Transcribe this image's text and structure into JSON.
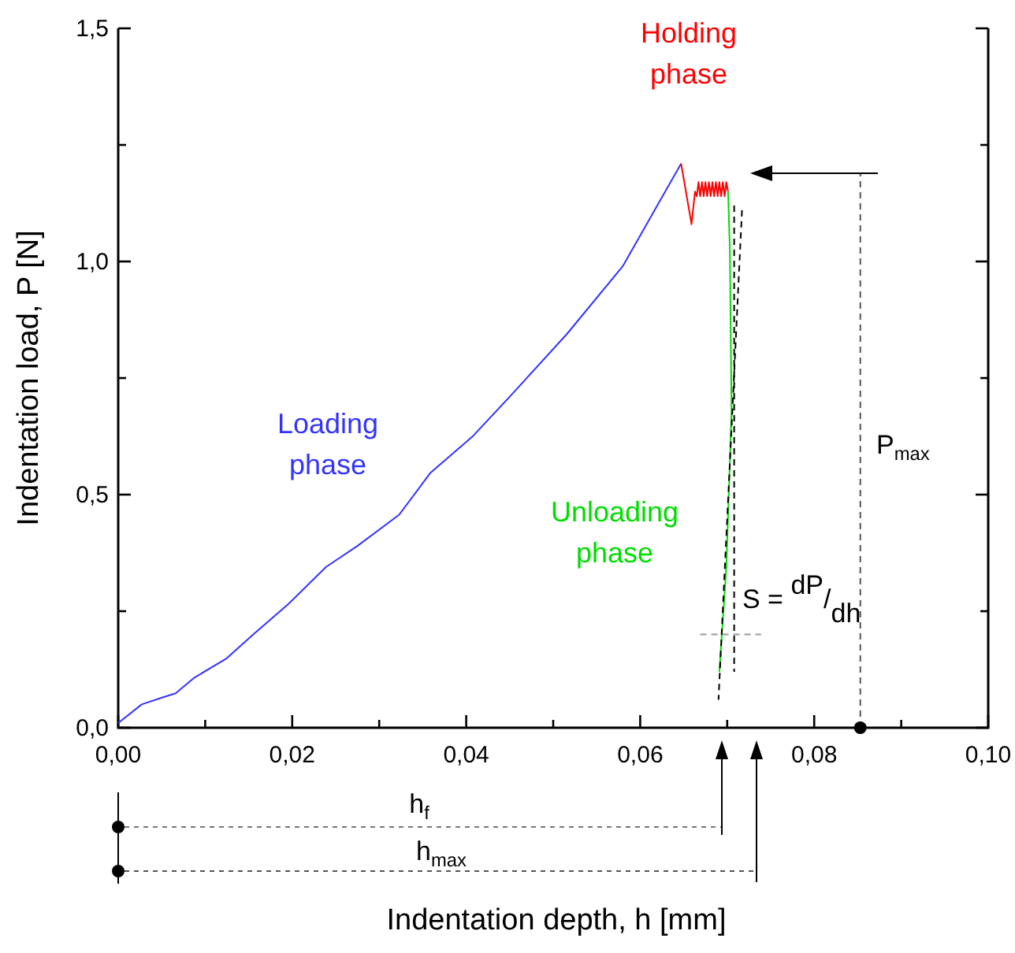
{
  "chart_data": {
    "type": "line",
    "xlabel": "Indentation depth, h [mm]",
    "ylabel": "Indentation load, P [N]",
    "xlim": [
      0,
      0.1
    ],
    "ylim": [
      0,
      1.5
    ],
    "xticks": [
      {
        "value": 0,
        "label": "0,00"
      },
      {
        "value": 0.01,
        "label": null
      },
      {
        "value": 0.02,
        "label": "0,02"
      },
      {
        "value": 0.03,
        "label": null
      },
      {
        "value": 0.04,
        "label": "0,04"
      },
      {
        "value": 0.05,
        "label": null
      },
      {
        "value": 0.06,
        "label": "0,06"
      },
      {
        "value": 0.07,
        "label": null
      },
      {
        "value": 0.08,
        "label": "0,08"
      },
      {
        "value": 0.09,
        "label": null
      },
      {
        "value": 0.1,
        "label": "0,10"
      }
    ],
    "yticks": [
      {
        "value": 0,
        "label": "0,0"
      },
      {
        "value": 0.25,
        "label": null
      },
      {
        "value": 0.5,
        "label": "0,5"
      },
      {
        "value": 0.75,
        "label": null
      },
      {
        "value": 1,
        "label": "1,0"
      },
      {
        "value": 1.25,
        "label": null
      },
      {
        "value": 1.5,
        "label": "1,5"
      }
    ],
    "grid": false,
    "series": [
      {
        "color": "#3333ff",
        "x": [
          0,
          0.0027,
          0.0051,
          0.0066,
          0.0088,
          0.0124,
          0.0154,
          0.0196,
          0.0239,
          0.0275,
          0.0323,
          0.0359,
          0.0408,
          0.0453,
          0.0516,
          0.058,
          0.0647
        ],
        "values": [
          0.01,
          0.05,
          0.065,
          0.074,
          0.108,
          0.148,
          0.198,
          0.266,
          0.345,
          0.39,
          0.457,
          0.547,
          0.626,
          0.716,
          0.845,
          0.99,
          1.21
        ]
      },
      {
        "color": "#ff0000",
        "x": [
          0.0647,
          0.0659,
          0.0663,
          0.0665,
          0.0667,
          0.0669,
          0.0671,
          0.0673,
          0.0675,
          0.0677,
          0.0679,
          0.0681,
          0.0683,
          0.0685,
          0.0687,
          0.0689,
          0.0691,
          0.0693,
          0.0695,
          0.0697,
          0.0699,
          0.0701
        ],
        "values": [
          1.21,
          1.08,
          1.15,
          1.14,
          1.17,
          1.14,
          1.17,
          1.14,
          1.17,
          1.14,
          1.17,
          1.14,
          1.17,
          1.14,
          1.17,
          1.14,
          1.17,
          1.14,
          1.17,
          1.14,
          1.17,
          1.15
        ]
      },
      {
        "color": "#00dd00",
        "x": [
          0.0701,
          0.0703,
          0.0705,
          0.0699,
          0.0691
        ],
        "values": [
          1.15,
          1.03,
          0.68,
          0.345,
          0.12
        ]
      },
      {
        "color": "#000000",
        "line_style": "dashed",
        "x": [
          0.0717,
          0.069
        ],
        "values": [
          1.11,
          0.06
        ]
      },
      {
        "color": "#000000",
        "line_style": "dashed",
        "x": [
          0.0708,
          0.0708
        ],
        "values": [
          1.12,
          0.12
        ]
      },
      {
        "color": "#999999",
        "line_style": "dashed",
        "x": [
          0.0669,
          0.0739
        ],
        "values": [
          0.2,
          0.2
        ]
      },
      {
        "color": "#555555",
        "line_style": "dashed",
        "x": [
          0.0853,
          0.0853
        ],
        "values": [
          0,
          1.19
        ]
      },
      {
        "type": "scatter",
        "color": "#000000",
        "marker": "circle",
        "x": [
          0.0853
        ],
        "values": [
          0
        ]
      }
    ],
    "annotations": [
      "Loading\nphase",
      "Holding\nphase",
      "Unloading\nphase",
      "S = dP/dh",
      "P$_{max}$",
      "h$_{f}$",
      "h$_{max}$"
    ]
  }
}
